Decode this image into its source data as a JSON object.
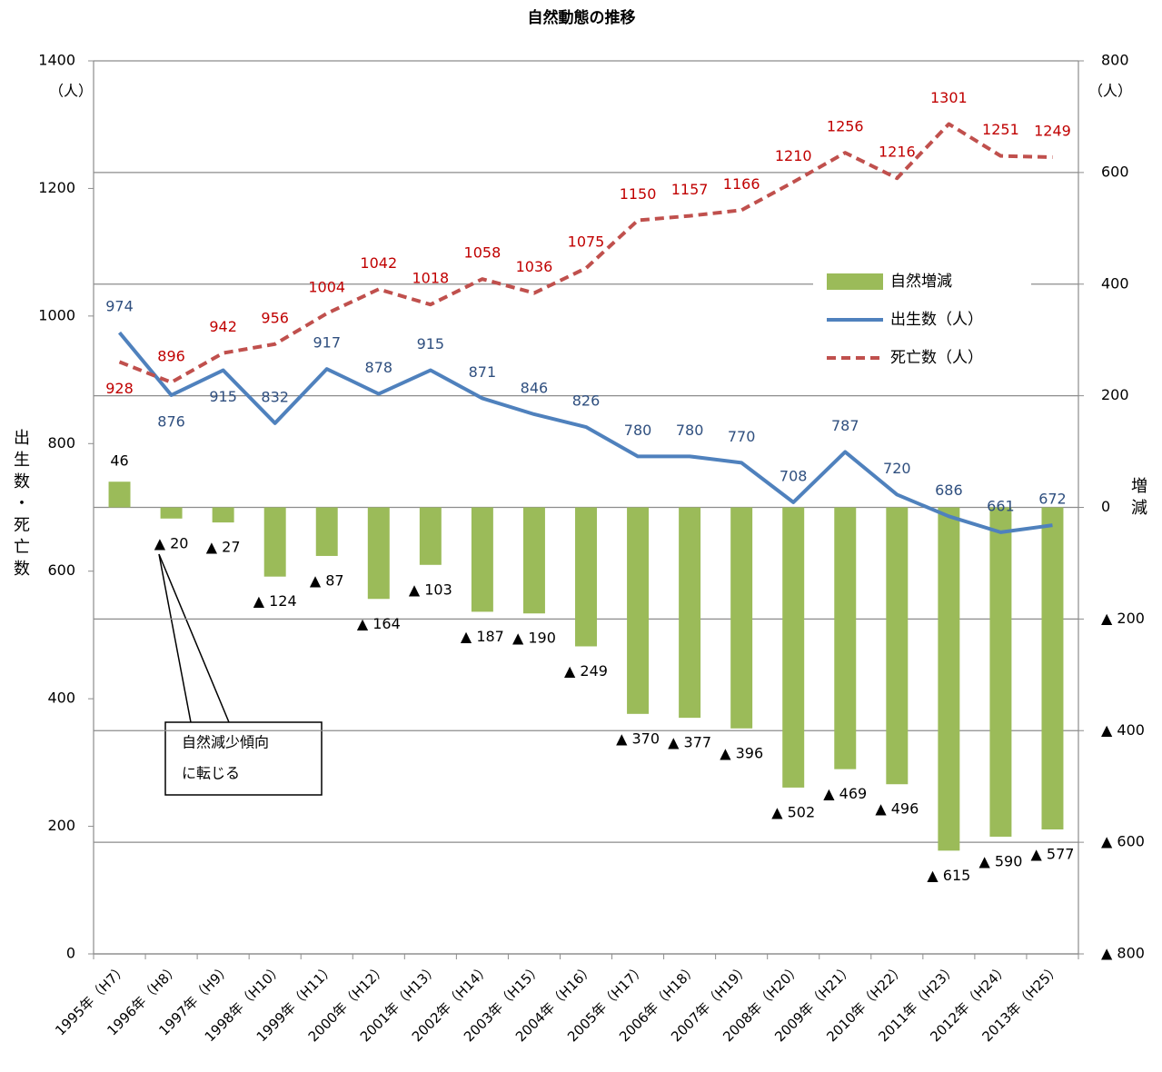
{
  "chart_data": {
    "type": "combo",
    "title": "自然動態の推移",
    "y_unit": "（人）",
    "y2_unit": "（人）",
    "ylabel": "出生数・死亡数",
    "y2label": "増減",
    "categories": [
      "1995年（H7）",
      "1996年（H8）",
      "1997年（H9）",
      "1998年（H10）",
      "1999年（H11）",
      "2000年（H12）",
      "2001年（H13）",
      "2002年（H14）",
      "2003年（H15）",
      "2004年（H16）",
      "2005年（H17）",
      "2006年（H18）",
      "2007年（H19）",
      "2008年（H20）",
      "2009年（H21）",
      "2010年（H22）",
      "2011年（H23）",
      "2012年（H24）",
      "2013年（H25）"
    ],
    "series": [
      {
        "name": "自然増減",
        "type": "bar",
        "axis": "y2",
        "color": "#9bbb59",
        "values": [
          46,
          -20,
          -27,
          -124,
          -87,
          -164,
          -103,
          -187,
          -190,
          -249,
          -370,
          -377,
          -396,
          -502,
          -469,
          -496,
          -615,
          -590,
          -577
        ],
        "value_labels": [
          "46",
          "▲ 20",
          "▲ 27",
          "▲ 124",
          "▲ 87",
          "▲ 164",
          "▲ 103",
          "▲ 187",
          "▲ 190",
          "▲ 249",
          "▲ 370",
          "▲ 377",
          "▲ 396",
          "▲ 502",
          "▲ 469",
          "▲ 496",
          "▲ 615",
          "▲ 590",
          "▲ 577"
        ]
      },
      {
        "name": "出生数（人）",
        "type": "line",
        "color": "#4f81bd",
        "values": [
          974,
          876,
          915,
          832,
          917,
          878,
          915,
          871,
          846,
          826,
          780,
          780,
          770,
          708,
          787,
          720,
          686,
          661,
          672
        ]
      },
      {
        "name": "死亡数（人）",
        "type": "line",
        "dashed": true,
        "color": "#c0504d",
        "values": [
          928,
          896,
          942,
          956,
          1004,
          1042,
          1018,
          1058,
          1036,
          1075,
          1150,
          1157,
          1166,
          1210,
          1256,
          1216,
          1301,
          1251,
          1249
        ]
      }
    ],
    "ylim": [
      0,
      1400
    ],
    "yticks": [
      0,
      200,
      400,
      600,
      800,
      1000,
      1200,
      1400
    ],
    "y2lim": [
      -800,
      800
    ],
    "y2ticks": [
      {
        "value": -800,
        "label": "▲ 800"
      },
      {
        "value": -600,
        "label": "▲ 600"
      },
      {
        "value": -400,
        "label": "▲ 400"
      },
      {
        "value": -200,
        "label": "▲ 200"
      },
      0,
      200,
      400,
      600,
      800
    ],
    "grid": true,
    "legend": "upper right",
    "annotation": [
      "自然減少傾向",
      "に転じる"
    ]
  }
}
